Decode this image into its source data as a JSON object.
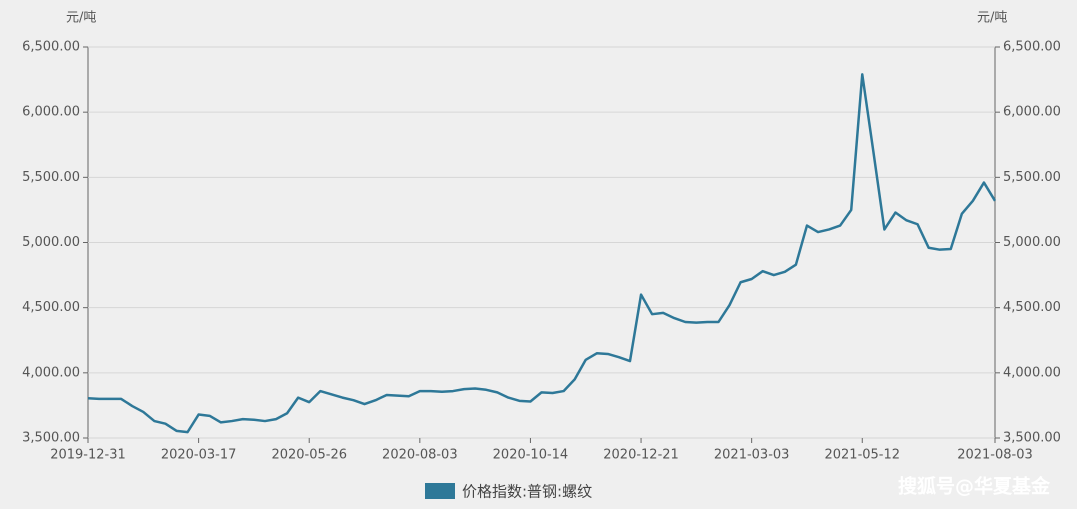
{
  "chart_data": {
    "type": "line",
    "y_unit": "元/吨",
    "y2_unit": "元/吨",
    "categories": [
      "2019-12-31",
      null,
      null,
      null,
      null,
      null,
      null,
      null,
      null,
      null,
      "2020-03-17",
      null,
      null,
      null,
      null,
      null,
      null,
      null,
      null,
      null,
      "2020-05-26",
      null,
      null,
      null,
      null,
      null,
      null,
      null,
      null,
      null,
      "2020-08-03",
      null,
      null,
      null,
      null,
      null,
      null,
      null,
      null,
      null,
      "2020-10-14",
      null,
      null,
      null,
      null,
      null,
      null,
      null,
      null,
      null,
      "2020-12-21",
      null,
      null,
      null,
      null,
      null,
      null,
      null,
      null,
      null,
      "2021-03-03",
      null,
      null,
      null,
      null,
      null,
      null,
      null,
      null,
      null,
      "2021-05-12",
      null,
      null,
      null,
      null,
      null,
      null,
      null,
      null,
      null,
      null,
      null,
      "2021-08-03"
    ],
    "series": [
      {
        "name": "价格指数:普钢:螺纹",
        "color": "#2e7898",
        "values": [
          3805,
          3800,
          3800,
          3800,
          3745,
          3700,
          3630,
          3610,
          3555,
          3545,
          3680,
          3670,
          3620,
          3630,
          3645,
          3640,
          3630,
          3645,
          3690,
          3810,
          3775,
          3860,
          3835,
          3810,
          3790,
          3760,
          3790,
          3830,
          3825,
          3820,
          3860,
          3860,
          3855,
          3860,
          3875,
          3880,
          3870,
          3850,
          3810,
          3785,
          3780,
          3850,
          3845,
          3860,
          3950,
          4100,
          4150,
          4145,
          4120,
          4090,
          4600,
          4450,
          4460,
          4420,
          4390,
          4385,
          4390,
          4390,
          4520,
          4695,
          4720,
          4780,
          4750,
          4775,
          4830,
          5130,
          5080,
          5100,
          5130,
          5250,
          6290,
          5700,
          5100,
          5230,
          5170,
          5140,
          4960,
          4945,
          4950,
          5220,
          5320,
          5460,
          5320
        ]
      }
    ],
    "ylim": [
      3500,
      6500
    ],
    "yticks": [
      {
        "value": 3500,
        "label": "3,500.00"
      },
      {
        "value": 4000,
        "label": "4,000.00"
      },
      {
        "value": 4500,
        "label": "4,500.00"
      },
      {
        "value": 5000,
        "label": "5,000.00"
      },
      {
        "value": 5500,
        "label": "5,500.00"
      },
      {
        "value": 6000,
        "label": "6,000.00"
      },
      {
        "value": 6500,
        "label": "6,500.00"
      }
    ],
    "y2lim": [
      3500,
      6500
    ],
    "y2ticks": [
      {
        "value": 3500,
        "label": "3,500.00"
      },
      {
        "value": 4000,
        "label": "4,000.00"
      },
      {
        "value": 4500,
        "label": "4,500.00"
      },
      {
        "value": 5000,
        "label": "5,000.00"
      },
      {
        "value": 5500,
        "label": "5,500.00"
      },
      {
        "value": 6000,
        "label": "6,000.00"
      },
      {
        "value": 6500,
        "label": "6,500.00"
      }
    ],
    "grid": true,
    "legend": "bottom",
    "watermark": "搜狐号@华夏基金"
  }
}
